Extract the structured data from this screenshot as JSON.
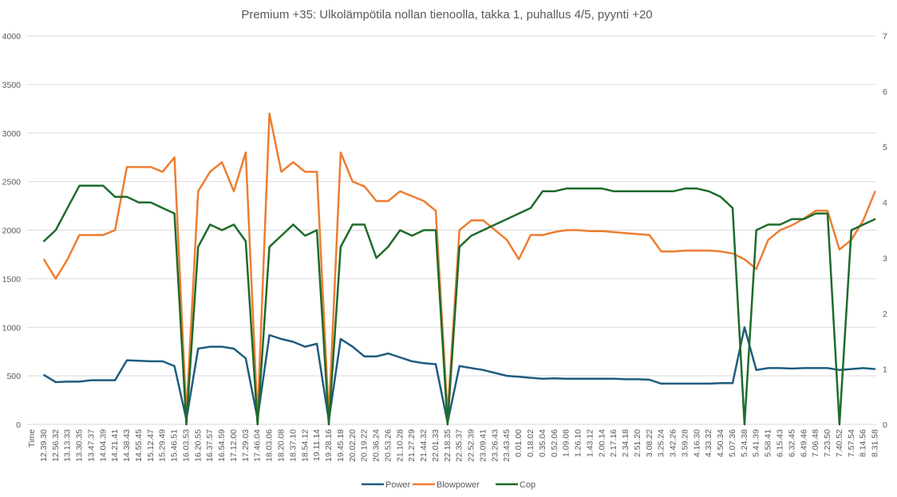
{
  "chart_data": {
    "type": "line",
    "title": "Premium +35: Ulkolämpötila nollan tienoolla, takka 1, puhallus 4/5, pyynti +20",
    "xlabel": "",
    "ylabel": "",
    "x_first_label": "Time",
    "y_left": {
      "min": 0,
      "max": 4000,
      "ticks": [
        0,
        500,
        1000,
        1500,
        2000,
        2500,
        3000,
        3500,
        4000
      ]
    },
    "y_right": {
      "min": 0,
      "max": 7,
      "ticks": [
        0,
        1,
        2,
        3,
        4,
        5,
        6,
        7
      ]
    },
    "grid": true,
    "legend_position": "bottom",
    "categories": [
      "12.39.30",
      "12.56.32",
      "13.13.33",
      "13.30.35",
      "13.47.37",
      "14.04.39",
      "14.21.41",
      "14.38.43",
      "14.55.45",
      "15.12.47",
      "15.29.49",
      "15.46.51",
      "16.03.53",
      "16.20.55",
      "16.37.57",
      "16.54.59",
      "17.12.00",
      "17.29.03",
      "17.46.04",
      "18.03.06",
      "18.20.08",
      "18.37.10",
      "18.54.12",
      "19.11.14",
      "19.28.16",
      "19.45.18",
      "20.02.20",
      "20.19.22",
      "20.36.24",
      "20.53.26",
      "21.10.28",
      "21.27.29",
      "21.44.32",
      "22.01.33",
      "22.18.35",
      "22.35.37",
      "22.52.39",
      "23.09.41",
      "23.26.43",
      "23.43.45",
      "0.01.00",
      "0.18.02",
      "0.35.04",
      "0.52.06",
      "1.09.08",
      "1.26.10",
      "1.43.12",
      "2.00.14",
      "2.17.16",
      "2.34.18",
      "2.51.20",
      "3.08.22",
      "3.25.24",
      "3.42.26",
      "3.59.28",
      "4.16.30",
      "4.33.32",
      "4.50.34",
      "5.07.36",
      "5.24.38",
      "5.41.39",
      "5.58.41",
      "6.15.43",
      "6.32.45",
      "6.49.46",
      "7.06.48",
      "7.23.50",
      "7.40.52",
      "7.57.54",
      "8.14.56",
      "8.31.58"
    ],
    "series": [
      {
        "name": "Power",
        "axis": "left",
        "color": "#1f5c7f",
        "values": [
          510,
          435,
          440,
          440,
          455,
          455,
          455,
          660,
          655,
          650,
          650,
          600,
          50,
          780,
          800,
          800,
          780,
          680,
          60,
          920,
          880,
          850,
          800,
          830,
          40,
          880,
          800,
          700,
          700,
          730,
          690,
          650,
          630,
          620,
          20,
          600,
          580,
          560,
          530,
          500,
          490,
          480,
          470,
          475,
          470,
          470,
          470,
          470,
          470,
          465,
          465,
          460,
          420,
          420,
          420,
          420,
          420,
          425,
          425,
          1000,
          560,
          580,
          580,
          575,
          580,
          580,
          580,
          560,
          570,
          580,
          570
        ]
      },
      {
        "name": "Blowpower",
        "axis": "left",
        "color": "#ed7d31",
        "values": [
          1700,
          1500,
          1700,
          1950,
          1950,
          1950,
          2000,
          2650,
          2650,
          2650,
          2600,
          2750,
          100,
          2400,
          2600,
          2700,
          2400,
          2800,
          60,
          3200,
          2600,
          2700,
          2600,
          2600,
          80,
          2800,
          2500,
          2450,
          2300,
          2300,
          2400,
          2350,
          2300,
          2200,
          100,
          2000,
          2100,
          2100,
          2000,
          1900,
          1700,
          1950,
          1950,
          1980,
          2000,
          2000,
          1990,
          1990,
          1980,
          1970,
          1960,
          1950,
          1780,
          1780,
          1790,
          1790,
          1790,
          1780,
          1760,
          1700,
          1600,
          1900,
          2000,
          2050,
          2120,
          2200,
          2200,
          1800,
          1900,
          2100,
          2400
        ]
      },
      {
        "name": "Cop",
        "axis": "right",
        "color": "#1e6b2a",
        "values": [
          3.3,
          3.5,
          3.9,
          4.3,
          4.3,
          4.3,
          4.1,
          4.1,
          4.0,
          4.0,
          3.9,
          3.8,
          0.0,
          3.2,
          3.6,
          3.5,
          3.6,
          3.3,
          0.0,
          3.2,
          3.4,
          3.6,
          3.4,
          3.5,
          0.0,
          3.2,
          3.6,
          3.6,
          3.0,
          3.2,
          3.5,
          3.4,
          3.5,
          3.5,
          0.0,
          3.2,
          3.4,
          3.5,
          3.6,
          3.7,
          3.8,
          3.9,
          4.2,
          4.2,
          4.25,
          4.25,
          4.25,
          4.25,
          4.2,
          4.2,
          4.2,
          4.2,
          4.2,
          4.2,
          4.25,
          4.25,
          4.2,
          4.1,
          3.9,
          0.0,
          3.5,
          3.6,
          3.6,
          3.7,
          3.7,
          3.8,
          3.8,
          0.0,
          3.5,
          3.6,
          3.7
        ]
      }
    ]
  }
}
